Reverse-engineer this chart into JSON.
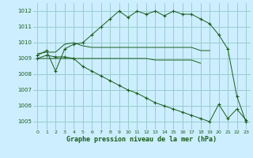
{
  "background_color": "#cceeff",
  "grid_color": "#99cccc",
  "line_color": "#1a5c1a",
  "title": "Graphe pression niveau de la mer (hPa)",
  "xlim": [
    -0.5,
    23.5
  ],
  "ylim": [
    1004.5,
    1012.5
  ],
  "yticks": [
    1005,
    1006,
    1007,
    1008,
    1009,
    1010,
    1011,
    1012
  ],
  "xticks": [
    0,
    1,
    2,
    3,
    4,
    5,
    6,
    7,
    8,
    9,
    10,
    11,
    12,
    13,
    14,
    15,
    16,
    17,
    18,
    19,
    20,
    21,
    22,
    23
  ],
  "series1_x": [
    0,
    1,
    2,
    3,
    4,
    5,
    6,
    7,
    8,
    9,
    10,
    11,
    12,
    13,
    14,
    15,
    16,
    17,
    18,
    19,
    20,
    21,
    22,
    23
  ],
  "series1_y": [
    1009.2,
    1009.5,
    1008.2,
    1009.6,
    1009.9,
    1010.0,
    1010.5,
    1011.0,
    1011.5,
    1012.0,
    1011.6,
    1012.0,
    1011.8,
    1012.0,
    1011.7,
    1012.0,
    1011.8,
    1011.8,
    1011.5,
    1011.2,
    1010.5,
    1009.6,
    1006.6,
    1005.0
  ],
  "series2_x": [
    0,
    1,
    2,
    3,
    4,
    5,
    6,
    7,
    8,
    9,
    10,
    11,
    12,
    13,
    14,
    15,
    16,
    17,
    18,
    19
  ],
  "series2_y": [
    1009.3,
    1009.4,
    1009.4,
    1009.9,
    1010.0,
    1009.8,
    1009.7,
    1009.7,
    1009.7,
    1009.7,
    1009.7,
    1009.7,
    1009.7,
    1009.7,
    1009.7,
    1009.7,
    1009.7,
    1009.7,
    1009.5,
    1009.5
  ],
  "series3_x": [
    0,
    1,
    2,
    3,
    4,
    5,
    6,
    7,
    8,
    9,
    10,
    11,
    12,
    13,
    14,
    15,
    16,
    17,
    18
  ],
  "series3_y": [
    1009.0,
    1009.0,
    1009.0,
    1009.0,
    1009.0,
    1009.0,
    1009.0,
    1009.0,
    1009.0,
    1009.0,
    1009.0,
    1009.0,
    1009.0,
    1008.9,
    1008.9,
    1008.9,
    1008.9,
    1008.9,
    1008.7
  ],
  "series4_x": [
    0,
    1,
    2,
    3,
    4,
    5,
    6,
    7,
    8,
    9,
    10,
    11,
    12,
    13,
    14,
    15,
    16,
    17,
    18,
    19,
    20,
    21,
    22,
    23
  ],
  "series4_y": [
    1009.0,
    1009.2,
    1009.1,
    1009.1,
    1009.0,
    1008.5,
    1008.2,
    1007.9,
    1007.6,
    1007.3,
    1007.0,
    1006.8,
    1006.5,
    1006.2,
    1006.0,
    1005.8,
    1005.6,
    1005.4,
    1005.2,
    1005.0,
    1006.1,
    1005.2,
    1005.8,
    1005.1
  ]
}
